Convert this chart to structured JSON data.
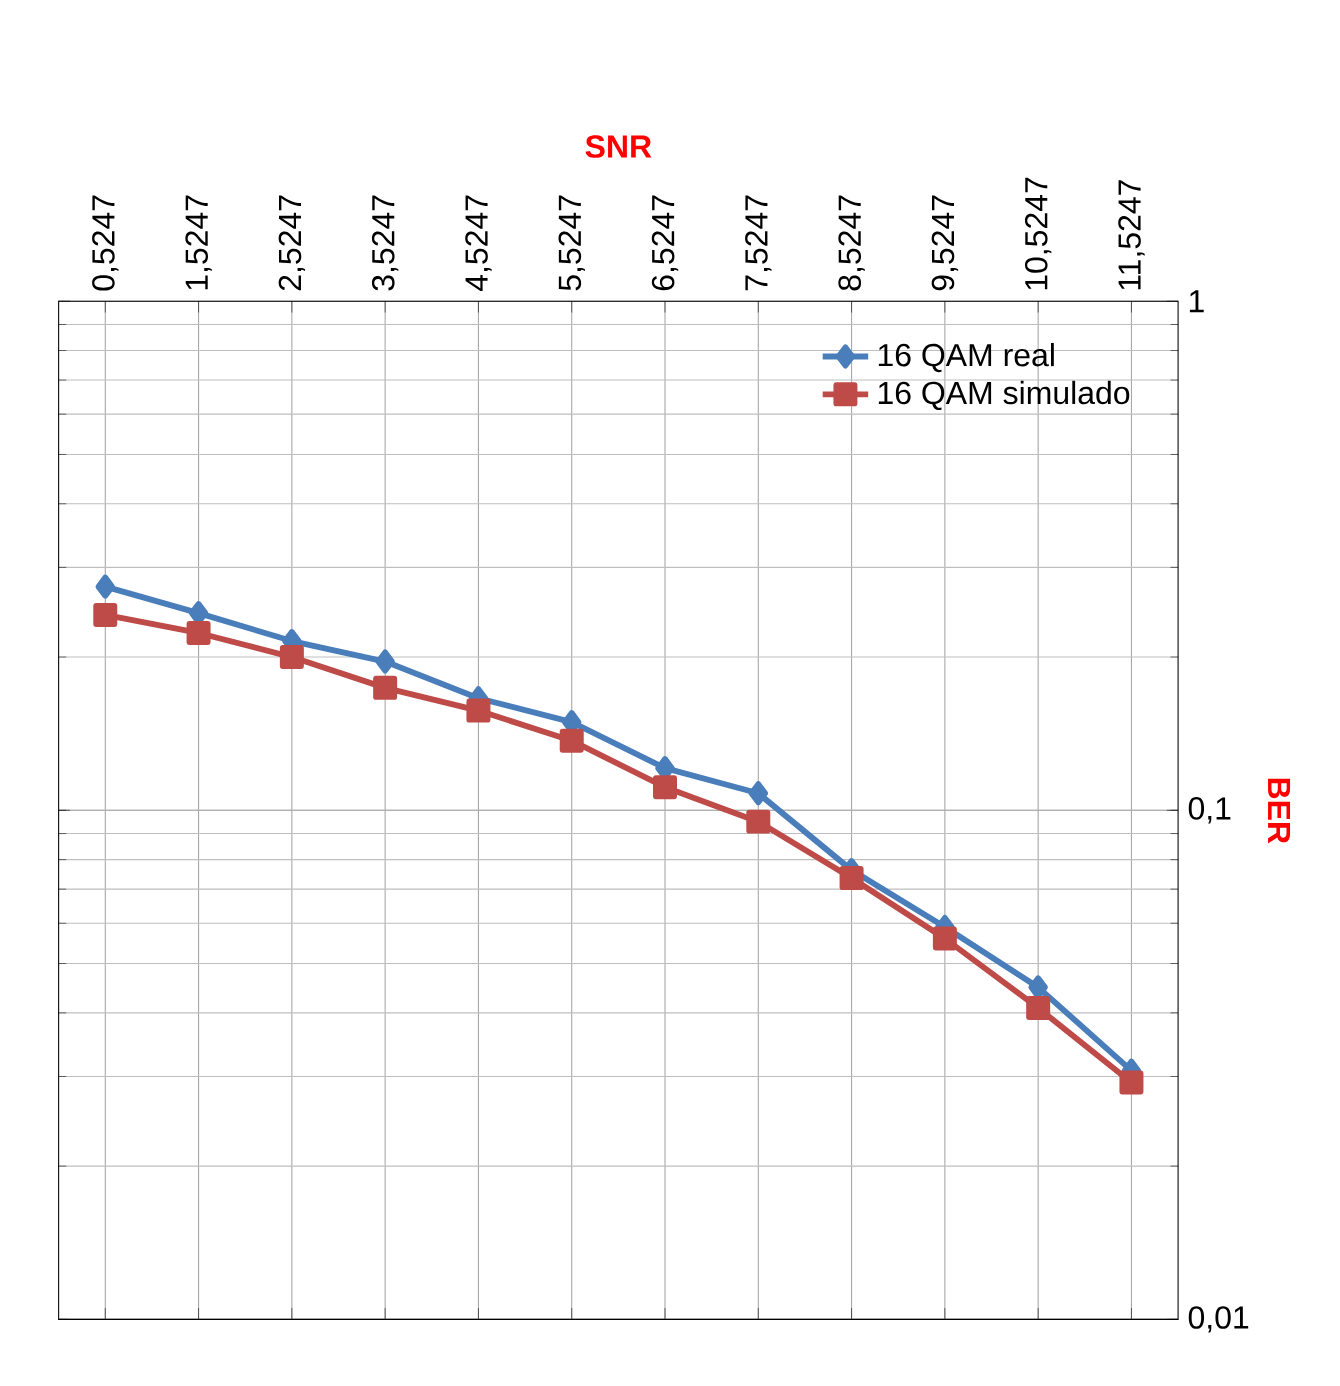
{
  "chart_data": {
    "type": "line",
    "xlabel": "SNR",
    "ylabel": "BER",
    "categories": [
      "0,5247",
      "1,5247",
      "2,5247",
      "3,5247",
      "4,5247",
      "5,5247",
      "6,5247",
      "7,5247",
      "8,5247",
      "9,5247",
      "10,5247",
      "11,5247"
    ],
    "series": [
      {
        "name": "16 QAM real",
        "color": "#4a7ebb",
        "marker": "diamond",
        "values": [
          0.275,
          0.244,
          0.215,
          0.196,
          0.166,
          0.149,
          0.121,
          0.108,
          0.0763,
          0.059,
          0.0449,
          0.0308
        ]
      },
      {
        "name": "16 QAM simulado",
        "color": "#be4b48",
        "marker": "square",
        "values": [
          0.242,
          0.223,
          0.2,
          0.174,
          0.157,
          0.137,
          0.111,
          0.095,
          0.0736,
          0.056,
          0.0409,
          0.0292
        ]
      }
    ],
    "log": "y",
    "ylim": [
      0.01,
      1
    ],
    "yticks": [
      {
        "value": 0.01,
        "label": "0,01"
      },
      {
        "value": 0.1,
        "label": "0,1"
      },
      {
        "value": 1,
        "label": "1"
      }
    ],
    "grid": true,
    "legend": "top right",
    "line_style": "solid"
  }
}
